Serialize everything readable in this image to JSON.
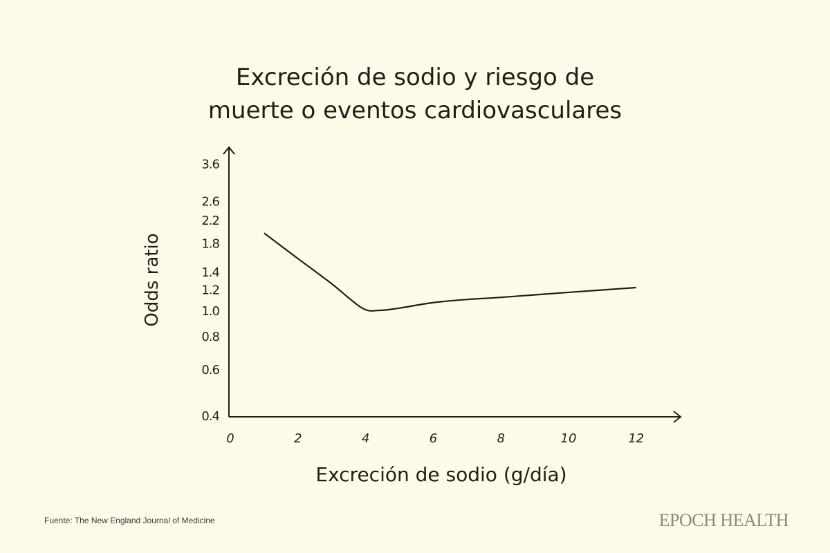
{
  "chart_data": {
    "type": "line",
    "title": [
      "Excreción de sodio y riesgo de",
      "muerte o eventos cardiovasculares"
    ],
    "xlabel": "Excreción de sodio (g/día)",
    "ylabel": "Odds ratio",
    "xlim": [
      0,
      13
    ],
    "ylim": [
      0.4,
      3.6
    ],
    "yscale": "log",
    "x_ticks": [
      0,
      2,
      4,
      6,
      8,
      10,
      12
    ],
    "y_ticks": [
      0.4,
      0.6,
      0.8,
      1.0,
      1.2,
      1.4,
      1.8,
      2.2,
      2.6,
      3.6
    ],
    "y_tick_labels": [
      "0.4",
      "0.6",
      "0.8",
      "1.0",
      "1.2",
      "1.4",
      "1.8",
      "2.2",
      "2.6",
      "3.6"
    ],
    "grid": false,
    "series": [
      {
        "name": "Odds ratio",
        "x": [
          1,
          2,
          3,
          3.9,
          4.4,
          5,
          6,
          7,
          8,
          10,
          12
        ],
        "y": [
          1.96,
          1.57,
          1.26,
          1.02,
          1.0,
          1.02,
          1.07,
          1.1,
          1.12,
          1.17,
          1.22
        ]
      }
    ]
  },
  "footer": {
    "source": "Fuente: The New England Journal of Medicine",
    "logo": "EPOCH HEALTH"
  }
}
